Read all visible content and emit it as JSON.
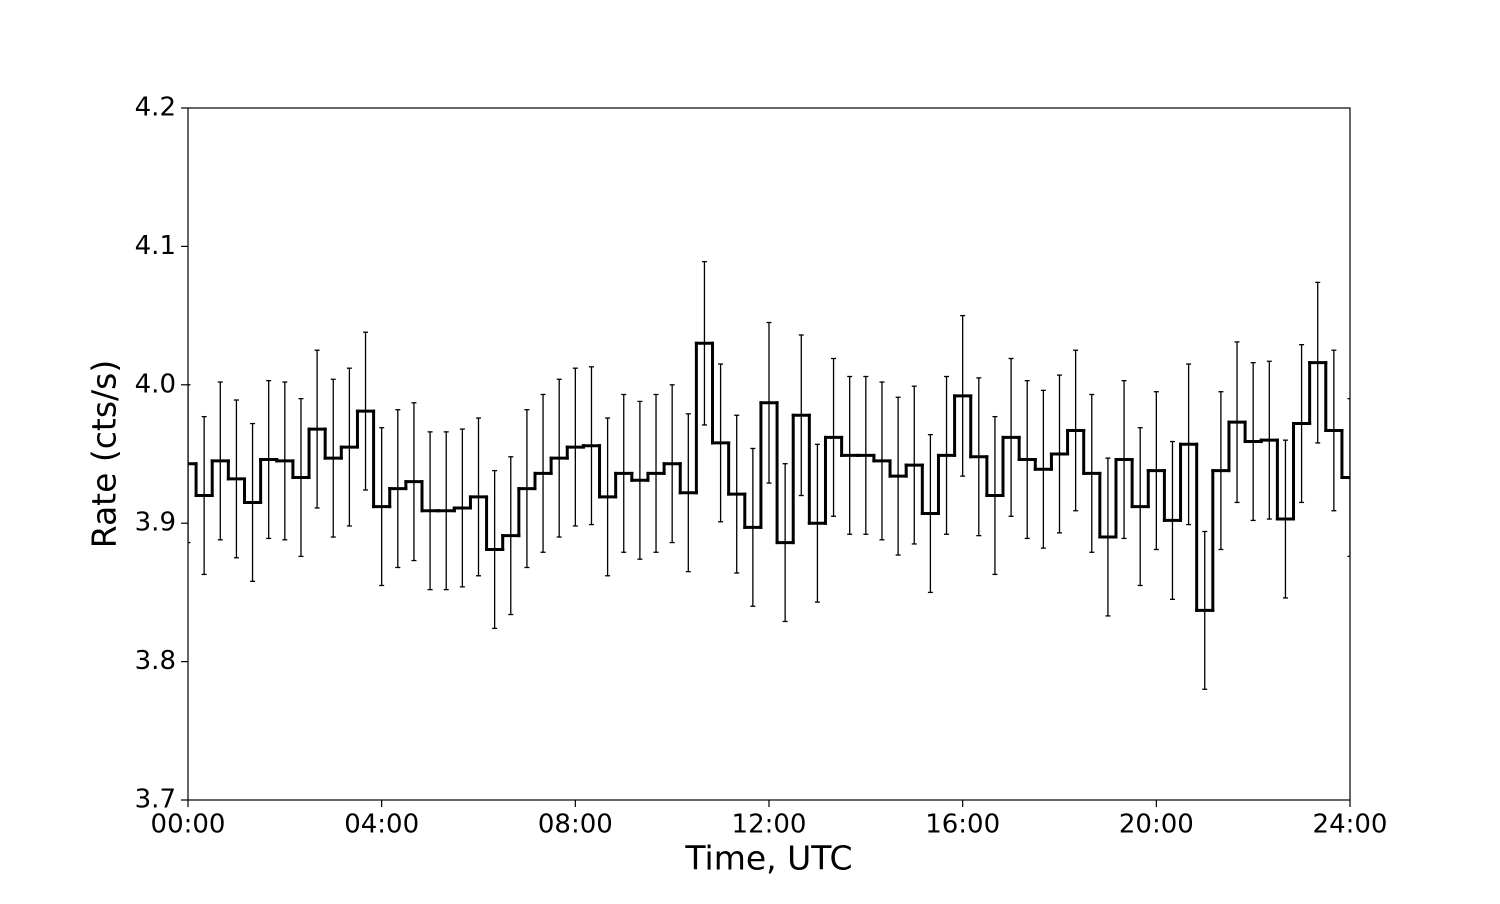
{
  "chart_data": {
    "type": "step-errorbar",
    "x_label": "Time, UTC",
    "y_label": "Rate (cts/s)",
    "x": [
      0,
      20,
      40,
      60,
      80,
      100,
      120,
      140,
      160,
      180,
      200,
      220,
      240,
      260,
      280,
      300,
      320,
      340,
      360,
      380,
      400,
      420,
      440,
      460,
      480,
      500,
      520,
      540,
      560,
      580,
      600,
      620,
      640,
      660,
      680,
      700,
      720,
      740,
      760,
      780,
      800,
      820,
      840,
      860,
      880,
      900,
      920,
      940,
      960,
      980,
      1000,
      1020,
      1040,
      1060,
      1080,
      1100,
      1120,
      1140,
      1160,
      1180,
      1200,
      1220,
      1240,
      1260,
      1280,
      1300,
      1320,
      1340,
      1360,
      1380,
      1400,
      1420,
      1440
    ],
    "series": [
      {
        "color": "#000000",
        "values": [
          3.943,
          3.92,
          3.945,
          3.932,
          3.915,
          3.946,
          3.945,
          3.933,
          3.968,
          3.947,
          3.955,
          3.981,
          3.912,
          3.925,
          3.93,
          3.909,
          3.909,
          3.911,
          3.919,
          3.881,
          3.891,
          3.925,
          3.936,
          3.947,
          3.955,
          3.956,
          3.919,
          3.936,
          3.931,
          3.936,
          3.943,
          3.922,
          4.03,
          3.958,
          3.921,
          3.897,
          3.987,
          3.886,
          3.978,
          3.9,
          3.962,
          3.949,
          3.949,
          3.945,
          3.934,
          3.942,
          3.907,
          3.949,
          3.992,
          3.948,
          3.92,
          3.962,
          3.946,
          3.939,
          3.95,
          3.967,
          3.936,
          3.89,
          3.946,
          3.912,
          3.938,
          3.902,
          3.957,
          3.837,
          3.938,
          3.973,
          3.959,
          3.96,
          3.903,
          3.972,
          4.016,
          3.967,
          3.933
        ],
        "errors": [
          0.057,
          0.057,
          0.057,
          0.057,
          0.057,
          0.057,
          0.057,
          0.057,
          0.057,
          0.057,
          0.057,
          0.057,
          0.057,
          0.057,
          0.057,
          0.057,
          0.057,
          0.057,
          0.057,
          0.057,
          0.057,
          0.057,
          0.057,
          0.057,
          0.057,
          0.057,
          0.057,
          0.057,
          0.057,
          0.057,
          0.057,
          0.057,
          0.059,
          0.057,
          0.057,
          0.057,
          0.058,
          0.057,
          0.058,
          0.057,
          0.057,
          0.057,
          0.057,
          0.057,
          0.057,
          0.057,
          0.057,
          0.057,
          0.058,
          0.057,
          0.057,
          0.057,
          0.057,
          0.057,
          0.057,
          0.058,
          0.057,
          0.057,
          0.057,
          0.057,
          0.057,
          0.057,
          0.058,
          0.057,
          0.057,
          0.058,
          0.057,
          0.057,
          0.057,
          0.057,
          0.058,
          0.058,
          0.057
        ]
      }
    ],
    "xlim": [
      0,
      1440
    ],
    "xticks": [
      {
        "value": 0,
        "label": "00:00"
      },
      {
        "value": 240,
        "label": "04:00"
      },
      {
        "value": 480,
        "label": "08:00"
      },
      {
        "value": 720,
        "label": "12:00"
      },
      {
        "value": 960,
        "label": "16:00"
      },
      {
        "value": 1200,
        "label": "20:00"
      },
      {
        "value": 1440,
        "label": "24:00"
      }
    ],
    "ylim": [
      3.7,
      4.2
    ],
    "yticks": [
      {
        "value": 3.7,
        "label": "3.7"
      },
      {
        "value": 3.8,
        "label": "3.8"
      },
      {
        "value": 3.9,
        "label": "3.9"
      },
      {
        "value": 4.0,
        "label": "4.0"
      },
      {
        "value": 4.1,
        "label": "4.1"
      },
      {
        "value": 4.2,
        "label": "4.2"
      }
    ]
  }
}
